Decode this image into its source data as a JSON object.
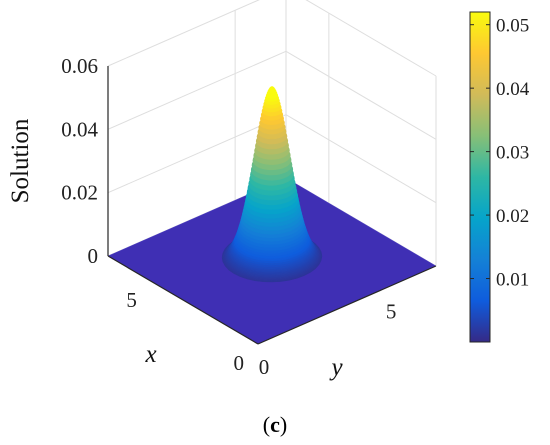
{
  "chart_data": {
    "type": "surface3d",
    "title": "",
    "zlabel": "Solution",
    "xlabel": "x",
    "ylabel": "y",
    "x_ticks": [
      "0",
      "5"
    ],
    "y_ticks": [
      "0",
      "5"
    ],
    "z_ticks": [
      "0",
      "0.02",
      "0.04",
      "0.06"
    ],
    "x_range": [
      0,
      7
    ],
    "y_range": [
      0,
      7
    ],
    "z_range": [
      0,
      0.06
    ],
    "grid": true,
    "peak": {
      "x": 3.5,
      "y": 3.5,
      "value": 0.055
    },
    "colormap": "parula",
    "colorbar": {
      "range": [
        0,
        0.052
      ],
      "ticks": [
        "0.01",
        "0.02",
        "0.03",
        "0.04",
        "0.05"
      ],
      "tick_values": [
        0.01,
        0.02,
        0.03,
        0.04,
        0.05
      ],
      "placement": "right"
    }
  },
  "caption": {
    "open": "(",
    "letter": "c",
    "close": ")"
  }
}
